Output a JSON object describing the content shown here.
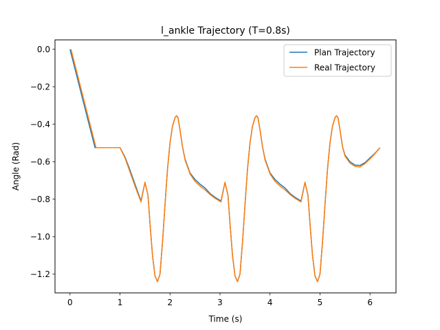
{
  "chart_data": {
    "type": "line",
    "title": "l_ankle Trajectory (T=0.8s)",
    "xlabel": "Time (s)",
    "ylabel": "Angle (Rad)",
    "xlim": [
      -0.3,
      6.52
    ],
    "ylim": [
      -1.3,
      0.05
    ],
    "xticks": [
      0,
      1,
      2,
      3,
      4,
      5,
      6
    ],
    "xtick_labels": [
      "0",
      "1",
      "2",
      "3",
      "4",
      "5",
      "6"
    ],
    "yticks": [
      0.0,
      -0.2,
      -0.4,
      -0.6,
      -0.8,
      -1.0,
      -1.2
    ],
    "ytick_labels": [
      "0.0",
      "−0.2",
      "−0.4",
      "−0.6",
      "−0.8",
      "−1.0",
      "−1.2"
    ],
    "grid": false,
    "legend_position": "top-right",
    "series": [
      {
        "name": "Plan Trajectory",
        "color": "#1f77b4",
        "x": [
          0,
          0.5,
          1.0,
          1.1,
          1.2,
          1.3,
          1.42,
          1.5,
          1.56,
          1.6,
          1.65,
          1.7,
          1.75,
          1.8,
          1.85,
          1.9,
          1.95,
          2.0,
          2.05,
          2.1,
          2.13,
          2.16,
          2.2,
          2.25,
          2.3,
          2.4,
          2.5,
          2.6,
          2.7,
          2.8,
          2.9,
          3.02,
          3.1,
          3.16,
          3.2,
          3.25,
          3.3,
          3.35,
          3.4,
          3.45,
          3.5,
          3.55,
          3.6,
          3.65,
          3.7,
          3.73,
          3.76,
          3.8,
          3.85,
          3.9,
          4.0,
          4.1,
          4.2,
          4.3,
          4.4,
          4.5,
          4.62,
          4.7,
          4.76,
          4.8,
          4.85,
          4.9,
          4.95,
          5.0,
          5.05,
          5.1,
          5.15,
          5.2,
          5.25,
          5.3,
          5.33,
          5.36,
          5.4,
          5.45,
          5.5,
          5.6,
          5.7,
          5.8,
          5.9,
          6.0,
          6.1,
          6.2
        ],
        "y": [
          0.0,
          -0.525,
          -0.525,
          -0.575,
          -0.645,
          -0.72,
          -0.81,
          -0.71,
          -0.78,
          -0.93,
          -1.1,
          -1.21,
          -1.24,
          -1.2,
          -1.03,
          -0.83,
          -0.64,
          -0.5,
          -0.41,
          -0.365,
          -0.355,
          -0.365,
          -0.43,
          -0.52,
          -0.585,
          -0.66,
          -0.695,
          -0.72,
          -0.74,
          -0.77,
          -0.79,
          -0.81,
          -0.71,
          -0.78,
          -0.93,
          -1.1,
          -1.21,
          -1.24,
          -1.2,
          -1.03,
          -0.83,
          -0.64,
          -0.5,
          -0.41,
          -0.365,
          -0.355,
          -0.365,
          -0.43,
          -0.52,
          -0.585,
          -0.66,
          -0.695,
          -0.72,
          -0.74,
          -0.77,
          -0.79,
          -0.81,
          -0.71,
          -0.78,
          -0.93,
          -1.1,
          -1.21,
          -1.24,
          -1.2,
          -1.03,
          -0.83,
          -0.64,
          -0.5,
          -0.41,
          -0.365,
          -0.355,
          -0.365,
          -0.43,
          -0.52,
          -0.565,
          -0.6,
          -0.618,
          -0.62,
          -0.605,
          -0.58,
          -0.555,
          -0.525
        ]
      },
      {
        "name": "Real Trajectory",
        "color": "#ff7f0e",
        "x": [
          0.02,
          0.52,
          1.0,
          1.1,
          1.2,
          1.3,
          1.42,
          1.5,
          1.56,
          1.6,
          1.65,
          1.7,
          1.75,
          1.8,
          1.85,
          1.9,
          1.95,
          2.0,
          2.05,
          2.1,
          2.13,
          2.16,
          2.2,
          2.25,
          2.3,
          2.4,
          2.5,
          2.6,
          2.7,
          2.8,
          2.9,
          3.02,
          3.1,
          3.16,
          3.2,
          3.25,
          3.3,
          3.35,
          3.4,
          3.45,
          3.5,
          3.55,
          3.6,
          3.65,
          3.7,
          3.73,
          3.76,
          3.8,
          3.85,
          3.9,
          4.0,
          4.1,
          4.2,
          4.3,
          4.4,
          4.5,
          4.62,
          4.7,
          4.76,
          4.8,
          4.85,
          4.9,
          4.95,
          5.0,
          5.05,
          5.1,
          5.15,
          5.2,
          5.25,
          5.3,
          5.33,
          5.36,
          5.4,
          5.45,
          5.5,
          5.6,
          5.7,
          5.8,
          5.9,
          6.0,
          6.1,
          6.2
        ],
        "y": [
          0.0,
          -0.525,
          -0.525,
          -0.58,
          -0.655,
          -0.73,
          -0.815,
          -0.71,
          -0.78,
          -0.93,
          -1.1,
          -1.21,
          -1.24,
          -1.2,
          -1.03,
          -0.83,
          -0.64,
          -0.5,
          -0.41,
          -0.365,
          -0.355,
          -0.365,
          -0.43,
          -0.52,
          -0.59,
          -0.665,
          -0.705,
          -0.73,
          -0.75,
          -0.775,
          -0.795,
          -0.815,
          -0.71,
          -0.78,
          -0.93,
          -1.1,
          -1.21,
          -1.24,
          -1.2,
          -1.03,
          -0.83,
          -0.64,
          -0.5,
          -0.41,
          -0.365,
          -0.355,
          -0.365,
          -0.43,
          -0.52,
          -0.59,
          -0.665,
          -0.705,
          -0.73,
          -0.75,
          -0.775,
          -0.795,
          -0.815,
          -0.71,
          -0.78,
          -0.93,
          -1.1,
          -1.21,
          -1.24,
          -1.2,
          -1.03,
          -0.83,
          -0.64,
          -0.5,
          -0.41,
          -0.365,
          -0.355,
          -0.365,
          -0.43,
          -0.52,
          -0.57,
          -0.608,
          -0.625,
          -0.628,
          -0.61,
          -0.585,
          -0.557,
          -0.525
        ]
      }
    ]
  }
}
